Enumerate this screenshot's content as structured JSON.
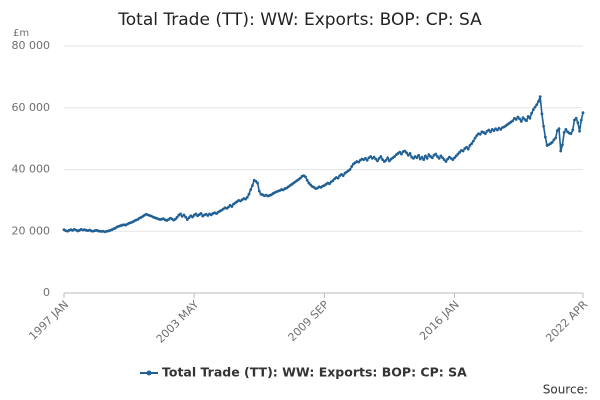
{
  "chart_data": {
    "type": "line",
    "title": "Total Trade (TT): WW: Exports: BOP: CP: SA",
    "y_unit": "£m",
    "source": "Source:",
    "categories": [
      "1997 JAN",
      null,
      null,
      null,
      null,
      null,
      null,
      null,
      null,
      null,
      null,
      null,
      null,
      null,
      null,
      null,
      null,
      null,
      null,
      null,
      null,
      null,
      null,
      null,
      null,
      null,
      null,
      null,
      null,
      null,
      null,
      null,
      null,
      null,
      null,
      null,
      null,
      null,
      null,
      null,
      null,
      null,
      null,
      null,
      null,
      null,
      null,
      null,
      null,
      null,
      null,
      null,
      null,
      null,
      null,
      null,
      null,
      null,
      null,
      null,
      null,
      null,
      null,
      null,
      null,
      null,
      null,
      null,
      null,
      null,
      null,
      null,
      null,
      null,
      null,
      null,
      "2003 MAY",
      null,
      null,
      null,
      null,
      null,
      null,
      null,
      null,
      null,
      null,
      null,
      null,
      null,
      null,
      null,
      null,
      null,
      null,
      null,
      null,
      null,
      null,
      null,
      null,
      null,
      null,
      null,
      null,
      null,
      null,
      null,
      null,
      null,
      null,
      null,
      null,
      null,
      null,
      null,
      null,
      null,
      null,
      null,
      null,
      null,
      null,
      null,
      null,
      null,
      null,
      null,
      null,
      null,
      null,
      null,
      null,
      null,
      null,
      null,
      null,
      null,
      null,
      null,
      null,
      null,
      null,
      null,
      null,
      null,
      null,
      null,
      null,
      null,
      null,
      null,
      "2009 SEP",
      null,
      null,
      null,
      null,
      null,
      null,
      null,
      null,
      null,
      null,
      null,
      null,
      null,
      null,
      null,
      null,
      null,
      null,
      null,
      null,
      null,
      null,
      null,
      null,
      null,
      null,
      null,
      null,
      null,
      null,
      null,
      null,
      null,
      null,
      null,
      null,
      null,
      null,
      null,
      null,
      null,
      null,
      null,
      null,
      null,
      null,
      null,
      null,
      null,
      null,
      null,
      null,
      null,
      null,
      null,
      null,
      null,
      null,
      null,
      null,
      null,
      null,
      null,
      null,
      null,
      null,
      null,
      null,
      null,
      null,
      null,
      null,
      null,
      null,
      null,
      "2016 JAN",
      null,
      null,
      null,
      null,
      null,
      null,
      null,
      null,
      null,
      null,
      null,
      null,
      null,
      null,
      null,
      null,
      null,
      null,
      null,
      null,
      null,
      null,
      null,
      null,
      null,
      null,
      null,
      null,
      null,
      null,
      null,
      null,
      null,
      null,
      null,
      null,
      null,
      null,
      null,
      null,
      null,
      null,
      null,
      null,
      null,
      null,
      null,
      null,
      null,
      null,
      null,
      null,
      null,
      null,
      null,
      null,
      null,
      null,
      null,
      null,
      null,
      null,
      null,
      null,
      null,
      null,
      null,
      null,
      null,
      null,
      null,
      null,
      null,
      null,
      "2022 APR"
    ],
    "series": [
      {
        "name": "Total Trade (TT): WW: Exports: BOP: CP: SA",
        "color": "#206095",
        "values": [
          20500,
          20200,
          20000,
          20300,
          20500,
          20300,
          20600,
          20400,
          20100,
          20300,
          20600,
          20400,
          20500,
          20300,
          20200,
          20400,
          20100,
          20000,
          20200,
          20300,
          20100,
          20000,
          19900,
          20000,
          19800,
          20000,
          20100,
          20300,
          20500,
          20800,
          21000,
          21400,
          21600,
          21800,
          22000,
          22100,
          22000,
          22300,
          22600,
          22800,
          23000,
          23300,
          23600,
          23800,
          24200,
          24500,
          24800,
          25200,
          25500,
          25300,
          25100,
          24900,
          24600,
          24400,
          24200,
          24000,
          23800,
          23900,
          24100,
          23700,
          23500,
          23800,
          24200,
          24000,
          23600,
          23900,
          24500,
          25200,
          25600,
          24800,
          25300,
          24600,
          23800,
          24400,
          25000,
          24600,
          25200,
          25600,
          25000,
          25400,
          25800,
          24900,
          25300,
          25500,
          25100,
          25600,
          25300,
          25800,
          26000,
          25700,
          26200,
          26500,
          26800,
          27200,
          27600,
          27400,
          27800,
          28400,
          28000,
          28800,
          29200,
          29600,
          30000,
          29800,
          30200,
          30600,
          30400,
          31000,
          32000,
          33500,
          34800,
          36500,
          36200,
          35600,
          33000,
          32000,
          31800,
          31500,
          31700,
          31400,
          31600,
          31800,
          32200,
          32500,
          32800,
          33000,
          33200,
          33500,
          33400,
          33800,
          34000,
          34400,
          34800,
          35200,
          35600,
          36000,
          36400,
          36800,
          37200,
          37800,
          38000,
          37600,
          36500,
          35600,
          35000,
          34500,
          34200,
          33800,
          34000,
          34400,
          34200,
          34600,
          34800,
          35200,
          35600,
          35400,
          36000,
          36400,
          37000,
          37400,
          37200,
          38000,
          38400,
          38000,
          38800,
          39200,
          39600,
          40000,
          41000,
          41800,
          42200,
          42600,
          42400,
          43000,
          43400,
          43200,
          43600,
          43000,
          43800,
          44200,
          43600,
          44000,
          43400,
          42800,
          43600,
          44200,
          43200,
          42600,
          43000,
          43800,
          42800,
          43400,
          43800,
          44200,
          44800,
          45200,
          45600,
          45000,
          45800,
          46000,
          45400,
          44600,
          45200,
          44000,
          43600,
          44200,
          43800,
          44600,
          43400,
          44000,
          43200,
          44400,
          43600,
          44800,
          44200,
          43800,
          44600,
          45000,
          44200,
          43600,
          44400,
          43800,
          43200,
          42600,
          43400,
          44000,
          43600,
          43200,
          43800,
          44400,
          45000,
          45600,
          46200,
          46000,
          46800,
          47200,
          46600,
          47800,
          48400,
          49200,
          50200,
          51000,
          51600,
          51400,
          52200,
          52000,
          51600,
          52400,
          52800,
          52200,
          53000,
          52600,
          53200,
          52800,
          53400,
          53000,
          53600,
          53800,
          54200,
          54600,
          55000,
          55400,
          55800,
          56600,
          56200,
          57000,
          56400,
          55600,
          56800,
          56200,
          55800,
          57200,
          56600,
          58200,
          59400,
          60200,
          61000,
          62000,
          63600,
          58000,
          54000,
          50500,
          47800,
          48000,
          48400,
          48800,
          49600,
          50200,
          52600,
          53200,
          46000,
          48000,
          52000,
          53000,
          52200,
          51800,
          51600,
          52800,
          56000,
          56600,
          55200,
          52400,
          56000,
          58400
        ]
      }
    ],
    "ylim": [
      0,
      80000
    ],
    "yticks": [
      0,
      {
        "value": 20000,
        "label": "20 000"
      },
      {
        "value": 40000,
        "label": "40 000"
      },
      {
        "value": 60000,
        "label": "60 000"
      },
      {
        "value": 80000,
        "label": "80 000"
      }
    ],
    "grid": true
  }
}
